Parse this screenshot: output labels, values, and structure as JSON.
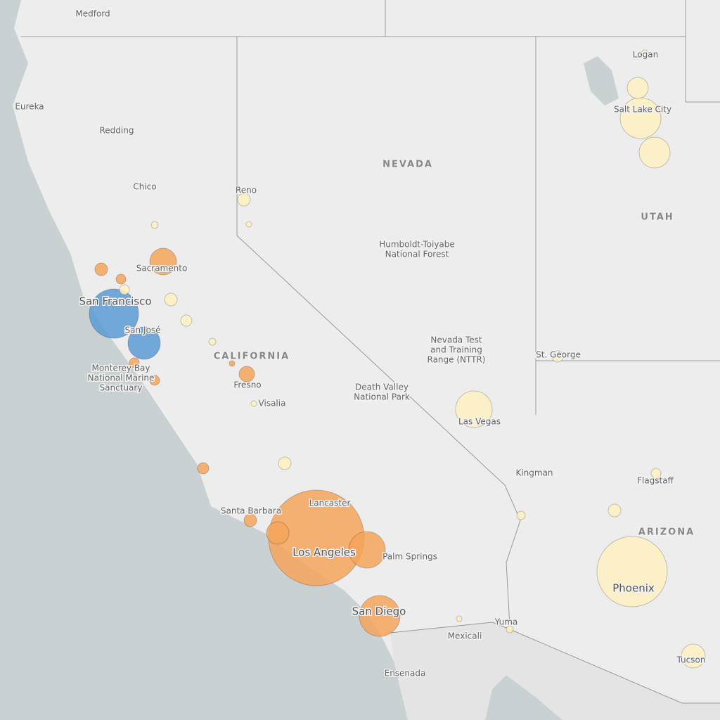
{
  "labels": [
    {
      "text": "Medford"
    },
    {
      "text": "Eureka"
    },
    {
      "text": "Redding"
    },
    {
      "text": "Chico"
    },
    {
      "text": "Reno"
    },
    {
      "text": "NEVADA"
    },
    {
      "text": "UTAH"
    },
    {
      "text": "CALIFORNIA"
    },
    {
      "text": "ARIZONA"
    },
    {
      "text": "Logan"
    },
    {
      "text": "Salt Lake City"
    },
    {
      "text": "Sacramento"
    },
    {
      "text": "San Francisco"
    },
    {
      "text": "San José"
    },
    {
      "lines": [
        "Monterey Bay",
        "National Marine",
        "Sanctuary"
      ]
    },
    {
      "text": "Fresno"
    },
    {
      "text": "Visalia"
    },
    {
      "lines": [
        "Humboldt-Toiyabe",
        "National Forest"
      ]
    },
    {
      "lines": [
        "Nevada Test",
        "and Training",
        "Range (NTTR)"
      ]
    },
    {
      "lines": [
        "Death Valley",
        "National Park"
      ]
    },
    {
      "text": "Las Vegas"
    },
    {
      "text": "St. George"
    },
    {
      "text": "Kingman"
    },
    {
      "text": "Flagstaff"
    },
    {
      "text": "Lancaster"
    },
    {
      "text": "Santa Barbara"
    },
    {
      "text": "Los Angeles"
    },
    {
      "text": "Palm Springs"
    },
    {
      "text": "Phoenix"
    },
    {
      "text": "San Diego"
    },
    {
      "text": "Yuma"
    },
    {
      "text": "Mexicali"
    },
    {
      "text": "Tucson"
    },
    {
      "text": "Ensenada"
    }
  ],
  "bubbles": [
    {
      "size": 35,
      "color": "#5b9bd5"
    },
    {
      "size": 23,
      "color": "#5b9bd5"
    },
    {
      "size": 68,
      "color": "#f4a55a"
    },
    {
      "size": 26,
      "color": "#f4a55a"
    },
    {
      "size": 16,
      "color": "#f4a55a"
    },
    {
      "size": 29,
      "color": "#f4a55a"
    },
    {
      "size": 19,
      "color": "#f4a55a"
    },
    {
      "size": 11,
      "color": "#f4a55a"
    },
    {
      "size": 9,
      "color": "#f4a55a"
    },
    {
      "size": 7,
      "color": "#f4a55a"
    },
    {
      "size": 7,
      "color": "#f4a55a"
    },
    {
      "size": 7,
      "color": "#f4a55a"
    },
    {
      "size": 8,
      "color": "#f4a55a"
    },
    {
      "size": 9,
      "color": "#f4a55a"
    },
    {
      "size": 4,
      "color": "#f4a55a"
    },
    {
      "size": 50,
      "color": "#fdf0c0"
    },
    {
      "size": 26,
      "color": "#fdf0c0"
    },
    {
      "size": 29,
      "color": "#fdf0c0"
    },
    {
      "size": 22,
      "color": "#fdf0c0"
    },
    {
      "size": 15,
      "color": "#fdf0c0"
    },
    {
      "size": 17,
      "color": "#fdf0c0"
    },
    {
      "size": 9,
      "color": "#fdf0c0"
    },
    {
      "size": 9,
      "color": "#fdf0c0"
    },
    {
      "size": 8,
      "color": "#fdf0c0"
    },
    {
      "size": 9,
      "color": "#fdf0c0"
    },
    {
      "size": 9,
      "color": "#fdf0c0"
    },
    {
      "size": 7,
      "color": "#fdf0c0"
    },
    {
      "size": 7,
      "color": "#fdf0c0"
    },
    {
      "size": 5,
      "color": "#fdf0c0"
    },
    {
      "size": 4,
      "color": "#fdf0c0"
    },
    {
      "size": 5,
      "color": "#fdf0c0"
    },
    {
      "size": 4,
      "color": "#fdf0c0"
    },
    {
      "size": 8,
      "color": "#fdf0c0"
    },
    {
      "size": 6,
      "color": "#fdf0c0"
    },
    {
      "size": 4,
      "color": "#fdf0c0"
    },
    {
      "size": 5,
      "color": "#fdf0c0"
    },
    {
      "size": 5,
      "color": "#fdf0c0"
    }
  ]
}
